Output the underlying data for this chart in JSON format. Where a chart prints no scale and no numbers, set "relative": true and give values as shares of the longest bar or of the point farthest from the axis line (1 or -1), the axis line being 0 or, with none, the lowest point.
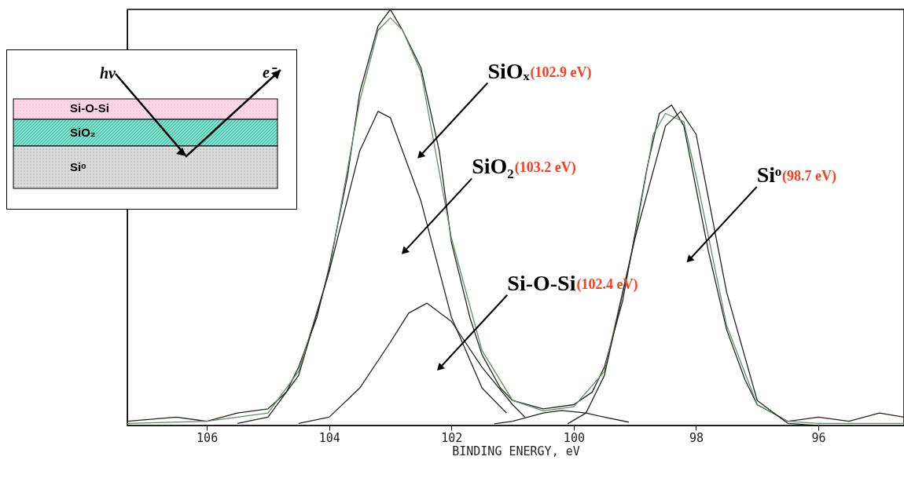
{
  "chart_data": {
    "type": "line",
    "relative": true,
    "xlabel": "BINDING ENERGY, eV",
    "xlim": [
      107.3,
      94.6
    ],
    "xticks": [
      106,
      104,
      102,
      100,
      98,
      96
    ],
    "grid": false,
    "marker": "none",
    "line_style": "solid",
    "series": [
      {
        "color": "#222222",
        "x": [
          107.3,
          106.5,
          106,
          105.5,
          105,
          104.7,
          104.5,
          104.2,
          104,
          103.7,
          103.5,
          103.2,
          103,
          102.8,
          102.5,
          102.2,
          102,
          101.7,
          101.5,
          101.2,
          101,
          100.5,
          100,
          99.7,
          99.5,
          99.2,
          99,
          98.8,
          98.6,
          98.4,
          98.2,
          98,
          97.8,
          97.5,
          97.2,
          97,
          96.5,
          96,
          95.5,
          95,
          94.6
        ],
        "values": [
          0.01,
          0.02,
          0.01,
          0.03,
          0.04,
          0.08,
          0.14,
          0.26,
          0.38,
          0.6,
          0.8,
          0.96,
          1.0,
          0.95,
          0.86,
          0.66,
          0.44,
          0.26,
          0.17,
          0.09,
          0.06,
          0.04,
          0.05,
          0.08,
          0.14,
          0.3,
          0.46,
          0.62,
          0.75,
          0.77,
          0.72,
          0.57,
          0.42,
          0.23,
          0.11,
          0.05,
          0.01,
          0.02,
          0.01,
          0.03,
          0.02
        ]
      },
      {
        "color": "#5f8f5f",
        "x": [
          107.3,
          106,
          105,
          104.5,
          104,
          103.5,
          103.2,
          103,
          102.8,
          102.5,
          102,
          101.5,
          101,
          100.5,
          100,
          99.5,
          99,
          98.7,
          98.5,
          98.2,
          98,
          97.5,
          97,
          96.5,
          96,
          94.6
        ],
        "values": [
          0.005,
          0.01,
          0.03,
          0.13,
          0.37,
          0.78,
          0.95,
          0.98,
          0.95,
          0.85,
          0.45,
          0.18,
          0.06,
          0.035,
          0.045,
          0.13,
          0.45,
          0.7,
          0.75,
          0.73,
          0.6,
          0.24,
          0.05,
          0.01,
          0.005,
          0.005
        ]
      },
      {
        "color": "#222222",
        "x": [
          105.5,
          105,
          104.5,
          104,
          103.5,
          103.2,
          103,
          102.5,
          102,
          101.5,
          101.1
        ],
        "values": [
          0.005,
          0.02,
          0.12,
          0.37,
          0.66,
          0.755,
          0.74,
          0.54,
          0.26,
          0.09,
          0.03
        ]
      },
      {
        "color": "#222222",
        "x": [
          104.5,
          104,
          103.5,
          103,
          102.7,
          102.4,
          102,
          101.5,
          101,
          100.8
        ],
        "values": [
          0.005,
          0.02,
          0.09,
          0.2,
          0.27,
          0.294,
          0.25,
          0.14,
          0.05,
          0.02
        ]
      },
      {
        "color": "#222222",
        "x": [
          101.3,
          101,
          100.5,
          100.2,
          99.8,
          99.5,
          99.1
        ],
        "values": [
          0.004,
          0.01,
          0.03,
          0.036,
          0.03,
          0.02,
          0.008
        ]
      },
      {
        "color": "#222222",
        "x": [
          100.1,
          99.8,
          99.5,
          99,
          98.5,
          98.25,
          98,
          97.5,
          97,
          96.5,
          96
        ],
        "values": [
          0.004,
          0.03,
          0.12,
          0.45,
          0.72,
          0.755,
          0.7,
          0.32,
          0.06,
          0.005,
          0.0
        ]
      }
    ],
    "annotations": [
      {
        "text": "SiOₓ(102.9 eV)",
        "x": 102.5,
        "y": 0.65
      },
      {
        "text": "SiO₂(103.2 eV)",
        "x": 102.76,
        "y": 0.42
      },
      {
        "text": "Si-O-Si(102.4 eV)",
        "x": 102.18,
        "y": 0.14
      },
      {
        "text": "Siᵒ(98.7 eV)",
        "x": 98.1,
        "y": 0.4
      },
      "hν",
      "e⁻",
      "Si-O-Si",
      "SiO₂",
      "Siᵒ"
    ]
  }
}
